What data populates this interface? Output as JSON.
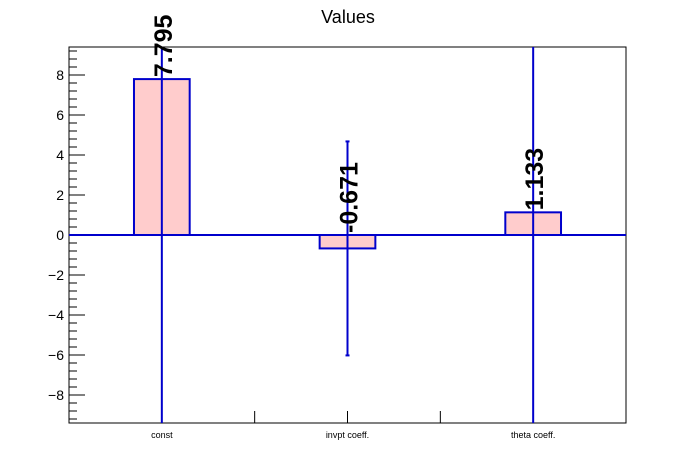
{
  "chart_data": {
    "type": "bar",
    "title": "Values",
    "xlabel": "",
    "ylabel": "",
    "categories": [
      "const",
      "invpt coeff.",
      "theta coeff."
    ],
    "values": [
      7.795,
      -0.671,
      1.133
    ],
    "value_labels": [
      "7.795",
      "-0.671",
      "1.133"
    ],
    "errors": [
      null,
      5.35,
      null
    ],
    "ylim": [
      -9.4,
      9.4
    ],
    "yticks": [
      -8,
      -6,
      -4,
      -2,
      0,
      2,
      4,
      6,
      8
    ],
    "ytick_labels": [
      "−8",
      "−6",
      "−4",
      "−2",
      "0",
      "2",
      "4",
      "6",
      "8"
    ],
    "grid": false,
    "legend": "none",
    "colors": {
      "bar_fill": "#ffcccc",
      "bar_edge": "#0000cc",
      "error_bar": "#0000cc",
      "zero_line": "#0000cc",
      "frame": "#000000"
    }
  }
}
